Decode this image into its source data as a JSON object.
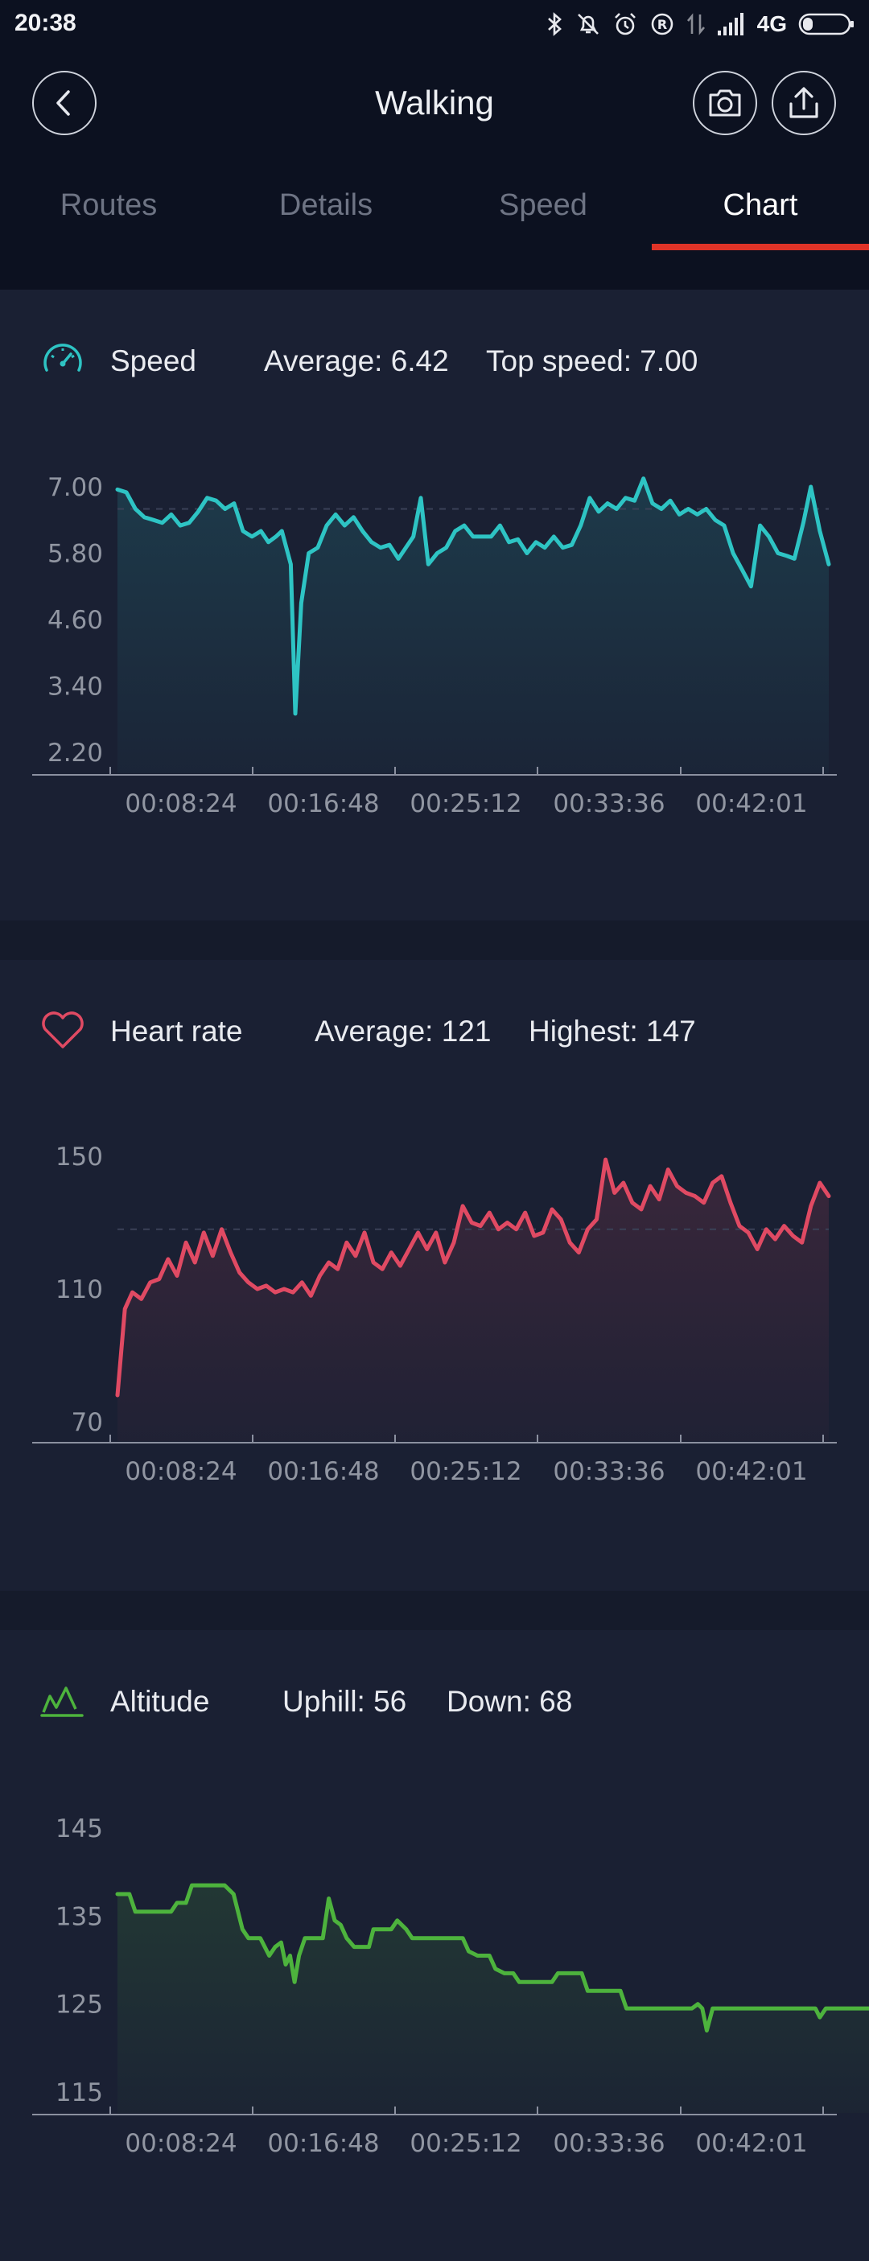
{
  "status_bar": {
    "time": "20:38",
    "network": "4G"
  },
  "header": {
    "title": "Walking"
  },
  "tabs": [
    {
      "label": "Routes",
      "active": false
    },
    {
      "label": "Details",
      "active": false
    },
    {
      "label": "Speed",
      "active": false
    },
    {
      "label": "Chart",
      "active": true
    }
  ],
  "speed": {
    "title": "Speed",
    "average": "Average: 6.42",
    "top": "Top speed: 7.00",
    "icon": "speedometer-icon",
    "color": "#2ec4c4"
  },
  "heart": {
    "title": "Heart rate",
    "average": "Average: 121",
    "top": "Highest: 147",
    "icon": "heart-icon",
    "color": "#e04a63"
  },
  "altitude": {
    "title": "Altitude",
    "average": "Uphill: 56",
    "top": "Down: 68",
    "icon": "mountain-icon",
    "color": "#4db33d"
  },
  "chart_data": [
    {
      "type": "line",
      "name": "speed",
      "yticks": [
        "7.00",
        "5.80",
        "4.60",
        "3.40",
        "2.20"
      ],
      "ylim": [
        2.2,
        7.0
      ],
      "xticks": [
        "00:08:24",
        "00:16:48",
        "00:25:12",
        "00:33:36",
        "00:42:01"
      ],
      "xlim_minutes": [
        0,
        42
      ],
      "color": "#2ec4c4",
      "points": [
        [
          0,
          6.95
        ],
        [
          0.6,
          6.9
        ],
        [
          1.2,
          6.6
        ],
        [
          1.8,
          6.45
        ],
        [
          2.4,
          6.4
        ],
        [
          3.0,
          6.35
        ],
        [
          3.6,
          6.5
        ],
        [
          4.2,
          6.3
        ],
        [
          4.8,
          6.35
        ],
        [
          5.4,
          6.55
        ],
        [
          6.0,
          6.8
        ],
        [
          6.6,
          6.75
        ],
        [
          7.2,
          6.6
        ],
        [
          7.8,
          6.7
        ],
        [
          8.4,
          6.2
        ],
        [
          9.0,
          6.1
        ],
        [
          9.6,
          6.2
        ],
        [
          10.1,
          6.0
        ],
        [
          10.6,
          6.1
        ],
        [
          11.0,
          6.2
        ],
        [
          11.6,
          5.6
        ],
        [
          11.9,
          2.9
        ],
        [
          12.3,
          4.9
        ],
        [
          12.8,
          5.8
        ],
        [
          13.4,
          5.9
        ],
        [
          14.0,
          6.3
        ],
        [
          14.6,
          6.5
        ],
        [
          15.2,
          6.3
        ],
        [
          15.8,
          6.45
        ],
        [
          16.4,
          6.2
        ],
        [
          17.0,
          6.0
        ],
        [
          17.6,
          5.9
        ],
        [
          18.2,
          5.95
        ],
        [
          18.8,
          5.7
        ],
        [
          19.3,
          5.9
        ],
        [
          19.8,
          6.1
        ],
        [
          20.3,
          6.8
        ],
        [
          20.8,
          5.6
        ],
        [
          21.4,
          5.8
        ],
        [
          22.0,
          5.9
        ],
        [
          22.6,
          6.2
        ],
        [
          23.2,
          6.3
        ],
        [
          23.8,
          6.1
        ],
        [
          24.4,
          6.1
        ],
        [
          25.0,
          6.1
        ],
        [
          25.6,
          6.3
        ],
        [
          26.2,
          6.0
        ],
        [
          26.8,
          6.05
        ],
        [
          27.4,
          5.8
        ],
        [
          28.0,
          6.0
        ],
        [
          28.6,
          5.9
        ],
        [
          29.2,
          6.1
        ],
        [
          29.8,
          5.9
        ],
        [
          30.4,
          5.95
        ],
        [
          31.0,
          6.3
        ],
        [
          31.6,
          6.8
        ],
        [
          32.2,
          6.55
        ],
        [
          32.8,
          6.7
        ],
        [
          33.4,
          6.6
        ],
        [
          34.0,
          6.8
        ],
        [
          34.6,
          6.75
        ],
        [
          35.2,
          7.15
        ],
        [
          35.8,
          6.7
        ],
        [
          36.4,
          6.6
        ],
        [
          37.0,
          6.75
        ],
        [
          37.6,
          6.5
        ],
        [
          38.2,
          6.6
        ],
        [
          38.8,
          6.5
        ],
        [
          39.4,
          6.6
        ],
        [
          40.0,
          6.4
        ],
        [
          40.6,
          6.3
        ],
        [
          41.2,
          5.8
        ],
        [
          41.8,
          5.5
        ],
        [
          42.4,
          5.2
        ],
        [
          43.0,
          6.3
        ],
        [
          43.6,
          6.1
        ],
        [
          44.2,
          5.8
        ],
        [
          44.8,
          5.75
        ],
        [
          45.3,
          5.7
        ],
        [
          45.9,
          6.35
        ],
        [
          46.4,
          7.0
        ],
        [
          47.0,
          6.2
        ],
        [
          47.6,
          5.6
        ]
      ]
    },
    {
      "type": "line",
      "name": "heart rate",
      "yticks": [
        "150",
        "110",
        "70"
      ],
      "ylim": [
        70,
        150
      ],
      "xticks": [
        "00:08:24",
        "00:16:48",
        "00:25:12",
        "00:33:36",
        "00:42:01"
      ],
      "color": "#e04a63",
      "points": [
        [
          0,
          78
        ],
        [
          0.5,
          104
        ],
        [
          1.0,
          109
        ],
        [
          1.6,
          107
        ],
        [
          2.2,
          112
        ],
        [
          2.8,
          113
        ],
        [
          3.4,
          119
        ],
        [
          4.0,
          114
        ],
        [
          4.6,
          124
        ],
        [
          5.2,
          118
        ],
        [
          5.8,
          127
        ],
        [
          6.4,
          120
        ],
        [
          7.0,
          128
        ],
        [
          7.6,
          121
        ],
        [
          8.2,
          115
        ],
        [
          8.8,
          112
        ],
        [
          9.4,
          110
        ],
        [
          10.0,
          111
        ],
        [
          10.6,
          109
        ],
        [
          11.2,
          110
        ],
        [
          11.8,
          109
        ],
        [
          12.4,
          112
        ],
        [
          13.0,
          108
        ],
        [
          13.6,
          114
        ],
        [
          14.2,
          118
        ],
        [
          14.8,
          116
        ],
        [
          15.4,
          124
        ],
        [
          16.0,
          120
        ],
        [
          16.6,
          127
        ],
        [
          17.2,
          118
        ],
        [
          17.8,
          116
        ],
        [
          18.4,
          121
        ],
        [
          19.0,
          117
        ],
        [
          19.6,
          122
        ],
        [
          20.2,
          127
        ],
        [
          20.8,
          122
        ],
        [
          21.4,
          127
        ],
        [
          22.0,
          118
        ],
        [
          22.6,
          124
        ],
        [
          23.2,
          135
        ],
        [
          23.8,
          130
        ],
        [
          24.4,
          129
        ],
        [
          25.0,
          133
        ],
        [
          25.6,
          128
        ],
        [
          26.2,
          130
        ],
        [
          26.8,
          128
        ],
        [
          27.4,
          133
        ],
        [
          28.0,
          126
        ],
        [
          28.6,
          127
        ],
        [
          29.2,
          134
        ],
        [
          29.8,
          131
        ],
        [
          30.4,
          124
        ],
        [
          31.0,
          121
        ],
        [
          31.6,
          128
        ],
        [
          32.2,
          131
        ],
        [
          32.8,
          149
        ],
        [
          33.4,
          139
        ],
        [
          34.0,
          142
        ],
        [
          34.6,
          136
        ],
        [
          35.2,
          134
        ],
        [
          35.8,
          141
        ],
        [
          36.4,
          137
        ],
        [
          37.0,
          146
        ],
        [
          37.6,
          141
        ],
        [
          38.2,
          139
        ],
        [
          38.8,
          138
        ],
        [
          39.4,
          136
        ],
        [
          40.0,
          142
        ],
        [
          40.6,
          144
        ],
        [
          41.2,
          136
        ],
        [
          41.8,
          129
        ],
        [
          42.4,
          127
        ],
        [
          43.0,
          122
        ],
        [
          43.6,
          128
        ],
        [
          44.2,
          125
        ],
        [
          44.8,
          129
        ],
        [
          45.4,
          126
        ],
        [
          46.0,
          124
        ],
        [
          46.6,
          135
        ],
        [
          47.2,
          142
        ],
        [
          47.8,
          138
        ]
      ]
    },
    {
      "type": "line",
      "name": "altitude",
      "yticks": [
        "145",
        "135",
        "125",
        "115"
      ],
      "ylim": [
        115,
        145
      ],
      "xticks": [
        "00:08:24",
        "00:16:48",
        "00:25:12",
        "00:33:36",
        "00:42:01"
      ],
      "color": "#4db33d",
      "points": [
        [
          0,
          137.5
        ],
        [
          0.8,
          137.5
        ],
        [
          1.2,
          135.5
        ],
        [
          3.6,
          135.5
        ],
        [
          4.0,
          136.5
        ],
        [
          4.6,
          136.5
        ],
        [
          5.0,
          138.5
        ],
        [
          7.2,
          138.5
        ],
        [
          7.8,
          137.5
        ],
        [
          8.4,
          133.5
        ],
        [
          8.8,
          132.5
        ],
        [
          9.6,
          132.5
        ],
        [
          10.2,
          130.5
        ],
        [
          10.6,
          131.5
        ],
        [
          11.0,
          132
        ],
        [
          11.3,
          129.5
        ],
        [
          11.6,
          130.5
        ],
        [
          11.9,
          127.5
        ],
        [
          12.2,
          130.5
        ],
        [
          12.6,
          132.5
        ],
        [
          13.8,
          132.5
        ],
        [
          14.2,
          137
        ],
        [
          14.6,
          134.5
        ],
        [
          15.0,
          134
        ],
        [
          15.4,
          132.5
        ],
        [
          15.9,
          131.5
        ],
        [
          16.9,
          131.5
        ],
        [
          17.2,
          133.5
        ],
        [
          18.4,
          133.5
        ],
        [
          18.8,
          134.5
        ],
        [
          19.4,
          133.5
        ],
        [
          19.8,
          132.5
        ],
        [
          22.0,
          132.5
        ],
        [
          23.2,
          132.5
        ],
        [
          23.6,
          131
        ],
        [
          24.2,
          130.5
        ],
        [
          25.0,
          130.5
        ],
        [
          25.4,
          129
        ],
        [
          26.0,
          128.5
        ],
        [
          26.6,
          128.5
        ],
        [
          27.0,
          127.5
        ],
        [
          29.2,
          127.5
        ],
        [
          29.6,
          128.5
        ],
        [
          31.2,
          128.5
        ],
        [
          31.6,
          126.5
        ],
        [
          33.8,
          126.5
        ],
        [
          34.2,
          124.5
        ],
        [
          38.6,
          124.5
        ],
        [
          39.0,
          125
        ],
        [
          39.3,
          124.5
        ],
        [
          39.6,
          122
        ],
        [
          40.0,
          124.5
        ],
        [
          46.9,
          124.5
        ],
        [
          47.2,
          123.5
        ],
        [
          47.6,
          124.5
        ],
        [
          55.0,
          124.5
        ]
      ]
    }
  ]
}
